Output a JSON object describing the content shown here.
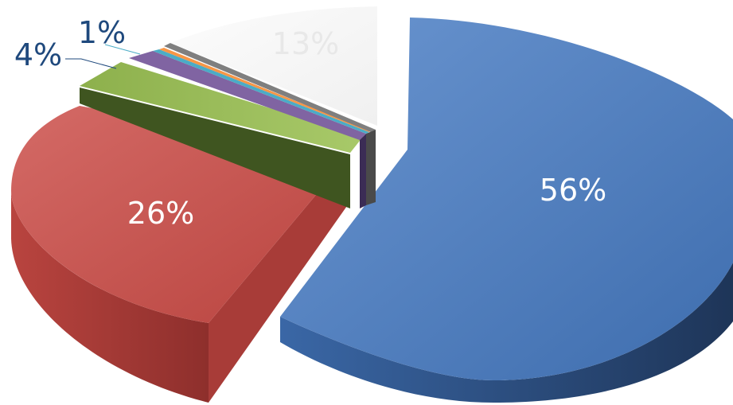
{
  "chart_data": {
    "type": "pie",
    "style": "3d-exploded",
    "slices": [
      {
        "value": 56,
        "label": "56%",
        "color": "#4F81BD"
      },
      {
        "value": 26,
        "label": "26%",
        "color": "#C0504D"
      },
      {
        "value": 4,
        "label": "4%",
        "color": "#9BBB59"
      },
      {
        "value": 1,
        "label": "1%",
        "color": "#8064A2"
      },
      {
        "value": 0.3,
        "label": "",
        "color": "#4BACC6"
      },
      {
        "value": 0.3,
        "label": "",
        "color": "#F79646"
      },
      {
        "value": 0.4,
        "label": "",
        "color": "#7F7F7F"
      },
      {
        "value": 13,
        "label": "13%",
        "color": "#F2F2F2"
      }
    ],
    "label_colors": {
      "inside": "#ffffff",
      "outside": "#1F497D"
    }
  }
}
